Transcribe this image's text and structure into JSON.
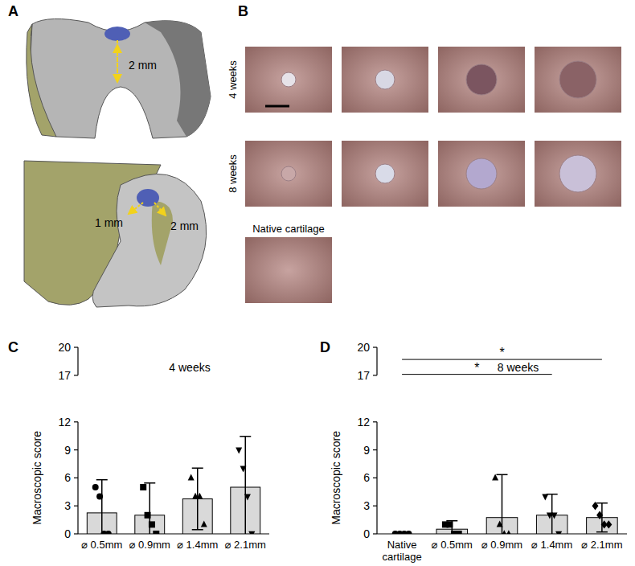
{
  "panel_labels": [
    "A",
    "B",
    "C",
    "D"
  ],
  "diagram": {
    "labels": [
      "2 mm",
      "1 mm",
      "2 mm"
    ]
  },
  "photos": {
    "row_labels": [
      "4 weeks",
      "8 weeks"
    ],
    "native_label": "Native cartilage"
  },
  "chart_data": [
    {
      "type": "bar",
      "title": "4 weeks",
      "y_label": "Macroscopic score",
      "categories": [
        "⌀ 0.5mm",
        "⌀ 0.9mm",
        "⌀ 1.4mm",
        "⌀ 2.1mm"
      ],
      "values": [
        2.25,
        2.0,
        3.75,
        5.0
      ],
      "errors": [
        3.55,
        3.45,
        3.3,
        5.45
      ],
      "points": [
        [
          5,
          4,
          0,
          0
        ],
        [
          5,
          2,
          1,
          0
        ],
        [
          6,
          4,
          4,
          1
        ],
        [
          9,
          7,
          4,
          0
        ]
      ],
      "color": "#d9d9d9",
      "ylim": [
        0,
        20
      ],
      "yticks": [
        0,
        3,
        6,
        9,
        12,
        17,
        20
      ],
      "grid": false
    },
    {
      "type": "bar",
      "title": "8 weeks",
      "y_label": "Macroscopic score",
      "categories": [
        "Native cartilage",
        "⌀ 0.5mm",
        "⌀ 0.9mm",
        "⌀ 1.4mm",
        "⌀ 2.1mm"
      ],
      "values": [
        0,
        0.5,
        1.75,
        2.0,
        1.75
      ],
      "errors": [
        0,
        0.9,
        4.6,
        2.25,
        1.55
      ],
      "points": [
        [
          0,
          0,
          0,
          0
        ],
        [
          1,
          1,
          0,
          0
        ],
        [
          6,
          1,
          0,
          0
        ],
        [
          4,
          2,
          2,
          0
        ],
        [
          3,
          2,
          1,
          1
        ]
      ],
      "annotations": [
        {
          "text": "*",
          "from": "Native cartilage",
          "to": "⌀ 2.1mm",
          "y": 18.7
        },
        {
          "text": "*",
          "from": "Native cartilage",
          "to": "⌀ 1.4mm",
          "y": 17.1
        }
      ],
      "color": "#d9d9d9",
      "ylim": [
        0,
        20
      ],
      "yticks": [
        0,
        3,
        6,
        9,
        12,
        17,
        20
      ],
      "grid": false
    }
  ]
}
